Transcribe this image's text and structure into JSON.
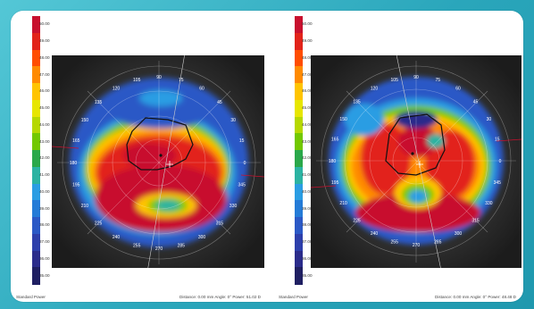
{
  "scale_labels": [
    "50.00",
    "49.00",
    "48.00",
    "47.00",
    "46.00",
    "45.00",
    "44.00",
    "43.00",
    "42.00",
    "41.00",
    "40.00",
    "39.00",
    "38.00",
    "37.00",
    "36.00",
    "35.00"
  ],
  "scale_colors": [
    "#c8102e",
    "#e2231a",
    "#ff4d00",
    "#ff8a00",
    "#ffc400",
    "#e7e600",
    "#b6d800",
    "#72c800",
    "#2aa84a",
    "#2bb3a2",
    "#2a9de3",
    "#247bd7",
    "#2b59c6",
    "#2d3fab",
    "#2b2c8b",
    "#1f1f62"
  ],
  "left": {
    "footer_left": "Standard Power",
    "footer_right": "Distance: 0.00 mm   Angle: 0°   Power: 51.02 D",
    "angles": [
      "90",
      "75",
      "105",
      "60",
      "120",
      "45",
      "135",
      "30",
      "150",
      "15",
      "165",
      "0",
      "180",
      "345",
      "195",
      "330",
      "210",
      "315",
      "225",
      "300",
      "240",
      "285",
      "255",
      "270"
    ]
  },
  "right": {
    "footer_left": "Standard Power",
    "footer_right": "Distance: 0.00 mm   Angle: 0°   Power: 48.48 D",
    "angles": [
      "90",
      "75",
      "105",
      "60",
      "120",
      "45",
      "135",
      "30",
      "150",
      "15",
      "165",
      "0",
      "180",
      "345",
      "195",
      "330",
      "210",
      "315",
      "225",
      "300",
      "240",
      "285",
      "255",
      "270"
    ]
  }
}
